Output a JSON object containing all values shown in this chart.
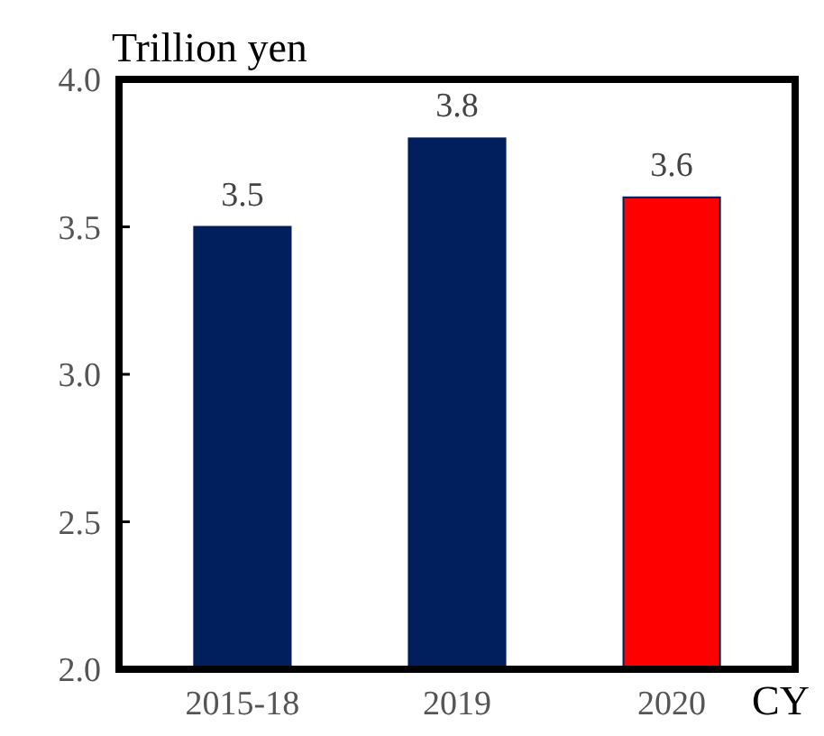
{
  "chart_data": {
    "type": "bar",
    "ylabel": "Trillion yen",
    "xlabel": "CY",
    "categories": [
      "2015-18",
      "2019",
      "2020"
    ],
    "values": [
      3.5,
      3.8,
      3.6
    ],
    "colors": [
      "#001f5c",
      "#001f5c",
      "#ff0000"
    ],
    "ylim": [
      2.0,
      4.0
    ],
    "yticks": [
      {
        "value": 2.0,
        "label": "2.0"
      },
      {
        "value": 2.5,
        "label": "2.5"
      },
      {
        "value": 3.0,
        "label": "3.0"
      },
      {
        "value": 3.5,
        "label": "3.5"
      },
      {
        "value": 4.0,
        "label": "4.0"
      }
    ],
    "data_labels": true
  }
}
